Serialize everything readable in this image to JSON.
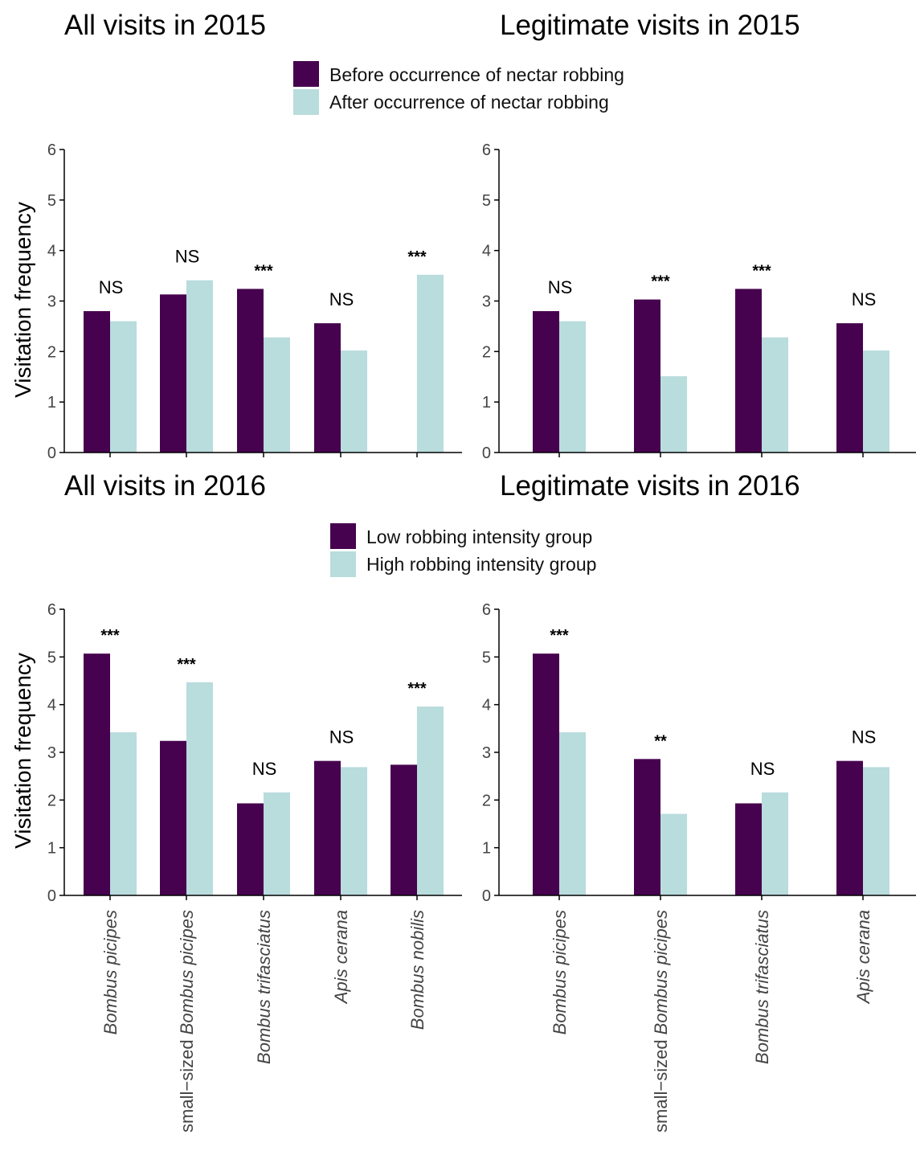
{
  "colors": {
    "dark": "#46024E",
    "light": "#B9DCDD"
  },
  "legends": {
    "2015": {
      "items": [
        "Before occurrence of nectar robbing",
        "After occurrence of nectar robbing"
      ]
    },
    "2016": {
      "items": [
        "Low robbing intensity group",
        "High robbing intensity group"
      ]
    }
  },
  "categories_all": [
    "Bombus picipes",
    "small-sized Bombus picipes",
    "Bombus trifasciatus",
    "Apis cerana",
    "Bombus nobilis"
  ],
  "categories_leg": [
    "Bombus picipes",
    "small-sized Bombus picipes",
    "Bombus trifasciatus",
    "Apis cerana"
  ],
  "chart_data": [
    {
      "type": "bar",
      "title": "All visits in 2015",
      "ylabel": "Visitation frequency",
      "ylim": [
        0,
        6
      ],
      "yticks": [
        0,
        1,
        2,
        3,
        4,
        5,
        6
      ],
      "categories": [
        "Bombus picipes",
        "small-sized Bombus picipes",
        "Bombus trifasciatus",
        "Apis cerana",
        "Bombus nobilis"
      ],
      "series": [
        {
          "name": "Before occurrence of nectar robbing",
          "values": [
            2.8,
            3.13,
            3.24,
            2.56,
            null
          ]
        },
        {
          "name": "After occurrence of nectar robbing",
          "values": [
            2.6,
            3.41,
            2.28,
            2.02,
            3.52
          ]
        }
      ],
      "significance": [
        "NS",
        "NS",
        "***",
        "NS",
        "***"
      ],
      "legend": "top-center"
    },
    {
      "type": "bar",
      "title": "Legitimate visits in 2015",
      "ylabel": "",
      "ylim": [
        0,
        6
      ],
      "yticks": [
        0,
        1,
        2,
        3,
        4,
        5,
        6
      ],
      "categories": [
        "Bombus picipes",
        "small-sized Bombus picipes",
        "Bombus trifasciatus",
        "Apis cerana"
      ],
      "series": [
        {
          "name": "Before occurrence of nectar robbing",
          "values": [
            2.8,
            3.03,
            3.24,
            2.56
          ]
        },
        {
          "name": "After occurrence of nectar robbing",
          "values": [
            2.6,
            1.51,
            2.28,
            2.02
          ]
        }
      ],
      "significance": [
        "NS",
        "***",
        "***",
        "NS"
      ],
      "legend": "top-center"
    },
    {
      "type": "bar",
      "title": "All visits in 2016",
      "ylabel": "Visitation frequency",
      "ylim": [
        0,
        6
      ],
      "yticks": [
        0,
        1,
        2,
        3,
        4,
        5,
        6
      ],
      "categories": [
        "Bombus picipes",
        "small-sized Bombus picipes",
        "Bombus trifasciatus",
        "Apis cerana",
        "Bombus nobilis"
      ],
      "series": [
        {
          "name": "Low robbing intensity group",
          "values": [
            5.07,
            3.24,
            1.93,
            2.82,
            2.74
          ]
        },
        {
          "name": "High robbing intensity group",
          "values": [
            3.42,
            4.47,
            2.16,
            2.69,
            3.96
          ]
        }
      ],
      "significance": [
        "***",
        "***",
        "NS",
        "NS",
        "***"
      ],
      "legend": "top-center"
    },
    {
      "type": "bar",
      "title": "Legitimate visits in 2016",
      "ylabel": "",
      "ylim": [
        0,
        6
      ],
      "yticks": [
        0,
        1,
        2,
        3,
        4,
        5,
        6
      ],
      "categories": [
        "Bombus picipes",
        "small-sized Bombus picipes",
        "Bombus trifasciatus",
        "Apis cerana"
      ],
      "series": [
        {
          "name": "Low robbing intensity group",
          "values": [
            5.07,
            2.86,
            1.93,
            2.82
          ]
        },
        {
          "name": "High robbing intensity group",
          "values": [
            3.42,
            1.71,
            2.16,
            2.69
          ]
        }
      ],
      "significance": [
        "***",
        "**",
        "NS",
        "NS"
      ],
      "legend": "top-center"
    }
  ]
}
